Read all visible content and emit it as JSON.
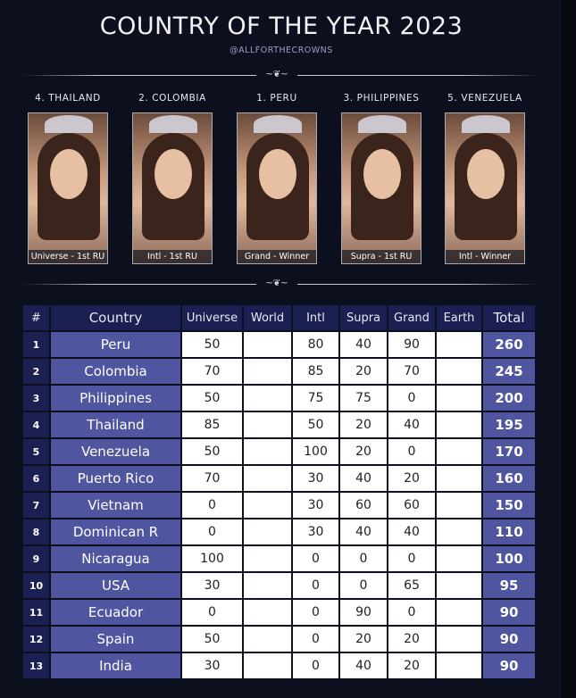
{
  "title": "COUNTRY OF THE YEAR 2023",
  "handle": "@ALLFORTHECROWNS",
  "cards": [
    {
      "label": "4. THAILAND",
      "caption": "Universe - 1st RU"
    },
    {
      "label": "2. COLOMBIA",
      "caption": "Intl - 1st RU"
    },
    {
      "label": "1. PERU",
      "caption": "Grand - Winner"
    },
    {
      "label": "3. PHILIPPINES",
      "caption": "Supra - 1st RU"
    },
    {
      "label": "5. VENEZUELA",
      "caption": "Intl - Winner"
    }
  ],
  "table": {
    "headers": [
      "#",
      "Country",
      "Universe",
      "World",
      "Intl",
      "Supra",
      "Grand",
      "Earth",
      "Total"
    ],
    "rows": [
      [
        "1",
        "Peru",
        "50",
        "",
        "80",
        "40",
        "90",
        "",
        "260"
      ],
      [
        "2",
        "Colombia",
        "70",
        "",
        "85",
        "20",
        "70",
        "",
        "245"
      ],
      [
        "3",
        "Philippines",
        "50",
        "",
        "75",
        "75",
        "0",
        "",
        "200"
      ],
      [
        "4",
        "Thailand",
        "85",
        "",
        "50",
        "20",
        "40",
        "",
        "195"
      ],
      [
        "5",
        "Venezuela",
        "50",
        "",
        "100",
        "20",
        "0",
        "",
        "170"
      ],
      [
        "6",
        "Puerto Rico",
        "70",
        "",
        "30",
        "40",
        "20",
        "",
        "160"
      ],
      [
        "7",
        "Vietnam",
        "0",
        "",
        "30",
        "60",
        "60",
        "",
        "150"
      ],
      [
        "8",
        "Dominican R",
        "0",
        "",
        "30",
        "40",
        "40",
        "",
        "110"
      ],
      [
        "9",
        "Nicaragua",
        "100",
        "",
        "0",
        "0",
        "0",
        "",
        "100"
      ],
      [
        "10",
        "USA",
        "30",
        "",
        "0",
        "0",
        "65",
        "",
        "95"
      ],
      [
        "11",
        "Ecuador",
        "0",
        "",
        "0",
        "90",
        "0",
        "",
        "90"
      ],
      [
        "12",
        "Spain",
        "50",
        "",
        "0",
        "20",
        "20",
        "",
        "90"
      ],
      [
        "13",
        "India",
        "30",
        "",
        "0",
        "40",
        "20",
        "",
        "90"
      ]
    ]
  },
  "colors": {
    "background": "#0c0f1e",
    "header": "#1c1f52",
    "accent": "#4f559f"
  }
}
